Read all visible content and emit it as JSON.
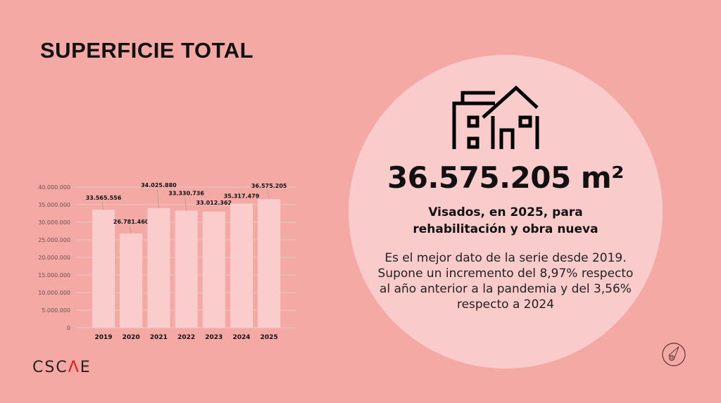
{
  "title": "SUPERFICIE TOTAL",
  "logo": "CSCAE",
  "highlight": {
    "value": "36.575.205 m²",
    "subtitle": "Visados, en 2025, para rehabilitación y obra nueva",
    "description": "Es el mejor dato de la serie desde 2019. Supone un incremento del 8,97% respecto al año anterior a la pandemia y del 3,56% respecto a 2024",
    "icon": "house-building-icon"
  },
  "colors": {
    "background": "#f4a9a4",
    "circle": "#f9cccb",
    "bar": "#f9cdcb",
    "logo_accent": "#e3141d"
  },
  "chart_data": {
    "type": "bar",
    "categories": [
      "2019",
      "2020",
      "2021",
      "2022",
      "2023",
      "2024",
      "2025"
    ],
    "values": [
      33565556,
      26781460,
      34025880,
      33330736,
      33012362,
      35317479,
      36575205
    ],
    "value_labels": [
      "33.565.556",
      "26.781.460",
      "34.025.880",
      "33.330.736",
      "33.012.362",
      "35.317.479",
      "36.575.205"
    ],
    "yticks": [
      "0",
      "5.000.000",
      "10.000.000",
      "15.000.000",
      "20.000.000",
      "25.000.000",
      "30.000.000",
      "35.000.000",
      "40.000.000"
    ],
    "ylim": [
      0,
      40000000
    ],
    "grid": true,
    "title": "",
    "xlabel": "",
    "ylabel": ""
  }
}
